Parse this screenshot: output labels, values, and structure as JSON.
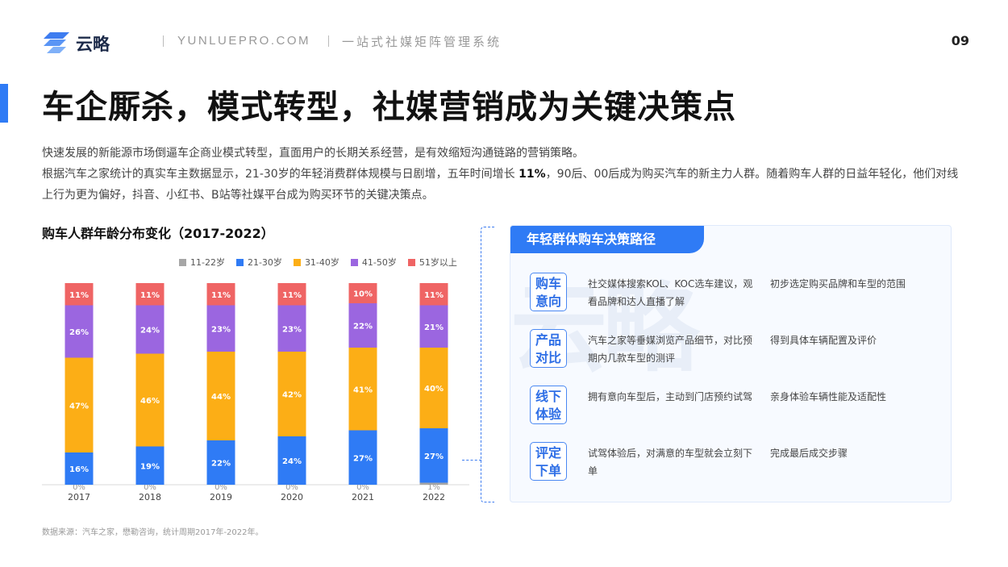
{
  "header": {
    "logo_text": "云略",
    "site": "YUNLUEPRO.COM",
    "slogan": "一站式社媒矩阵管理系统",
    "page_number": "09"
  },
  "title": "车企厮杀，模式转型，社媒营销成为关键决策点",
  "intro": {
    "line1": "快速发展的新能源市场倒逼车企商业模式转型，直面用户的长期关系经营，是有效缩短沟通链路的营销策略。",
    "line2_before": "根据汽车之家统计的真实车主数据显示，21-30岁的年轻消费群体规模与日剧增，五年时间增长 ",
    "line2_highlight": "11%",
    "line2_after": "，90后、00后成为购买汽车的新主力人群。随着购车人群的日益年轻化，他们对线上行为更为偏好，抖音、小红书、B站等社媒平台成为购买环节的关键决策点。"
  },
  "chart_data": {
    "type": "bar",
    "stacked": true,
    "percent": true,
    "title": "购车人群年龄分布变化（2017-2022）",
    "categories": [
      "2017",
      "2018",
      "2019",
      "2020",
      "2021",
      "2022"
    ],
    "series": [
      {
        "name": "11-22岁",
        "color": "#a6a6a6",
        "values": [
          0,
          0,
          0,
          0,
          0,
          1
        ]
      },
      {
        "name": "21-30岁",
        "color": "#2f7bf5",
        "values": [
          16,
          19,
          22,
          24,
          27,
          27
        ]
      },
      {
        "name": "31-40岁",
        "color": "#fcae16",
        "values": [
          47,
          46,
          44,
          42,
          41,
          40
        ]
      },
      {
        "name": "41-50岁",
        "color": "#9b66e0",
        "values": [
          26,
          24,
          23,
          23,
          22,
          21
        ]
      },
      {
        "name": "51岁以上",
        "color": "#ef6464",
        "values": [
          11,
          11,
          11,
          11,
          10,
          11
        ]
      }
    ],
    "ylim": [
      0,
      100
    ],
    "legend": "top-right",
    "grid": false
  },
  "source": "数据来源：汽车之家，懋勒咨询，统计周期2017年-2022年。",
  "panel": {
    "watermark": "云略",
    "title": "年轻群体购车决策路径",
    "steps": [
      {
        "label": [
          "购车",
          "意向"
        ],
        "desc": "社交媒体搜索KOL、KOC选车建议，观看品牌和达人直播了解",
        "result": "初步选定购买品牌和车型的范围"
      },
      {
        "label": [
          "产品",
          "对比"
        ],
        "desc": "汽车之家等垂媒浏览产品细节，对比预期内几款车型的测评",
        "result": "得到具体车辆配置及评价"
      },
      {
        "label": [
          "线下",
          "体验"
        ],
        "desc": "拥有意向车型后，主动到门店预约试驾",
        "result": "亲身体验车辆性能及适配性"
      },
      {
        "label": [
          "评定",
          "下单"
        ],
        "desc": "试驾体验后，对满意的车型就会立刻下单",
        "result": "完成最后成交步骤"
      }
    ]
  },
  "colors": {
    "accent": "#2f7bf5",
    "label_text": "#ffffff"
  }
}
